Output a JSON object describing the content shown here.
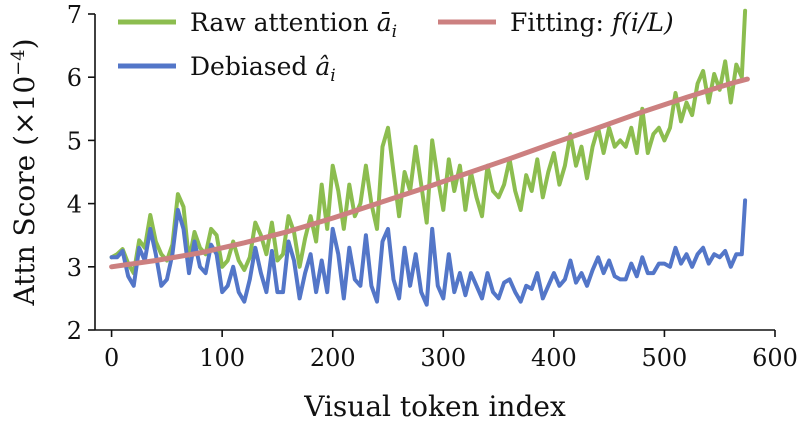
{
  "chart_data": {
    "type": "line",
    "xlabel": "Visual token index",
    "ylabel": "Attn Score (×10",
    "ylabel_exponent": "−4",
    "ylabel_close": ")",
    "xlim": [
      -15,
      600
    ],
    "ylim": [
      2,
      7
    ],
    "xticks": [
      0,
      100,
      200,
      300,
      400,
      500,
      600
    ],
    "yticks": [
      2,
      3,
      4,
      5,
      6,
      7
    ],
    "legend": [
      {
        "name": "raw",
        "label": "Raw attention ",
        "math": "ā",
        "sub": "i",
        "color": "#8cbd4f"
      },
      {
        "name": "debiased",
        "label": "Debiased ",
        "math": "â",
        "sub": "i",
        "color": "#5376c8"
      },
      {
        "name": "fitting",
        "label": "Fitting: ",
        "math": "f(i/L)",
        "sub": "",
        "color": "#cc8080"
      }
    ],
    "series": [
      {
        "name": "raw",
        "color": "#8cbd4f",
        "x": [
          0,
          5,
          10,
          15,
          20,
          25,
          30,
          35,
          40,
          45,
          50,
          55,
          60,
          65,
          70,
          75,
          80,
          85,
          90,
          95,
          100,
          105,
          110,
          115,
          120,
          125,
          130,
          135,
          140,
          145,
          150,
          155,
          160,
          165,
          170,
          175,
          180,
          185,
          190,
          195,
          200,
          205,
          210,
          215,
          220,
          225,
          230,
          235,
          240,
          245,
          250,
          255,
          260,
          265,
          270,
          275,
          280,
          285,
          290,
          295,
          300,
          305,
          310,
          315,
          320,
          325,
          330,
          335,
          340,
          345,
          350,
          355,
          360,
          365,
          370,
          375,
          380,
          385,
          390,
          395,
          400,
          405,
          410,
          415,
          420,
          425,
          430,
          435,
          440,
          445,
          450,
          455,
          460,
          465,
          470,
          475,
          480,
          485,
          490,
          495,
          500,
          505,
          510,
          515,
          520,
          525,
          530,
          535,
          540,
          545,
          550,
          555,
          560,
          565,
          570,
          573
        ],
        "values": [
          3.15,
          3.2,
          3.28,
          3.05,
          2.9,
          3.42,
          3.3,
          3.82,
          3.4,
          3.2,
          3.1,
          3.35,
          4.15,
          3.95,
          3.1,
          3.55,
          3.3,
          3.2,
          3.6,
          3.5,
          3.0,
          3.1,
          3.4,
          3.1,
          2.95,
          3.15,
          3.7,
          3.5,
          3.2,
          3.7,
          3.1,
          3.2,
          3.8,
          3.55,
          3.0,
          3.45,
          3.8,
          3.4,
          4.3,
          3.6,
          4.6,
          4.2,
          3.6,
          4.3,
          3.8,
          4.0,
          4.6,
          4.0,
          3.6,
          4.9,
          5.2,
          4.5,
          3.8,
          4.5,
          4.2,
          4.9,
          4.3,
          3.7,
          5.0,
          4.4,
          3.9,
          4.7,
          4.2,
          4.6,
          3.9,
          4.5,
          4.1,
          3.8,
          4.6,
          4.2,
          4.1,
          4.3,
          4.7,
          4.2,
          3.9,
          4.45,
          4.2,
          4.7,
          4.1,
          4.5,
          4.8,
          4.3,
          4.6,
          5.1,
          4.6,
          4.9,
          4.4,
          4.9,
          5.2,
          4.8,
          5.2,
          4.9,
          5.0,
          4.9,
          5.2,
          4.8,
          5.5,
          4.8,
          5.1,
          5.2,
          5.0,
          5.2,
          5.75,
          5.3,
          5.6,
          5.4,
          5.9,
          6.1,
          5.6,
          6.05,
          5.8,
          6.25,
          5.6,
          6.2,
          6.0,
          7.05
        ]
      },
      {
        "name": "debiased",
        "color": "#5376c8",
        "x": [
          0,
          5,
          10,
          15,
          20,
          25,
          30,
          35,
          40,
          45,
          50,
          55,
          60,
          65,
          70,
          75,
          80,
          85,
          90,
          95,
          100,
          105,
          110,
          115,
          120,
          125,
          130,
          135,
          140,
          145,
          150,
          155,
          160,
          165,
          170,
          175,
          180,
          185,
          190,
          195,
          200,
          205,
          210,
          215,
          220,
          225,
          230,
          235,
          240,
          245,
          250,
          255,
          260,
          265,
          270,
          275,
          280,
          285,
          290,
          295,
          300,
          305,
          310,
          315,
          320,
          325,
          330,
          335,
          340,
          345,
          350,
          355,
          360,
          365,
          370,
          375,
          380,
          385,
          390,
          395,
          400,
          405,
          410,
          415,
          420,
          425,
          430,
          435,
          440,
          445,
          450,
          455,
          460,
          465,
          470,
          475,
          480,
          485,
          490,
          495,
          500,
          505,
          510,
          515,
          520,
          525,
          530,
          535,
          540,
          545,
          550,
          555,
          560,
          565,
          570,
          573
        ],
        "values": [
          3.15,
          3.15,
          3.25,
          2.85,
          2.7,
          3.3,
          3.1,
          3.6,
          3.2,
          2.7,
          2.8,
          3.2,
          3.9,
          3.6,
          2.9,
          3.4,
          3.0,
          2.9,
          3.35,
          3.2,
          2.6,
          2.7,
          3.0,
          2.6,
          2.45,
          2.8,
          3.3,
          2.9,
          2.6,
          3.25,
          2.6,
          2.6,
          3.4,
          3.1,
          2.5,
          2.9,
          3.2,
          2.6,
          3.1,
          2.6,
          3.6,
          3.2,
          2.5,
          3.3,
          2.8,
          2.7,
          3.5,
          2.7,
          2.45,
          3.4,
          3.6,
          2.8,
          2.5,
          3.3,
          2.7,
          3.2,
          2.6,
          2.4,
          3.6,
          2.7,
          2.5,
          3.2,
          2.6,
          2.9,
          2.55,
          2.9,
          2.7,
          2.5,
          2.9,
          2.6,
          2.5,
          2.75,
          2.8,
          2.6,
          2.45,
          2.7,
          2.65,
          2.9,
          2.5,
          2.7,
          2.9,
          2.7,
          2.8,
          3.1,
          2.75,
          2.9,
          2.7,
          2.95,
          3.15,
          2.9,
          3.1,
          2.85,
          2.8,
          2.8,
          3.05,
          2.85,
          3.15,
          2.9,
          2.9,
          3.05,
          3.05,
          3.0,
          3.3,
          3.05,
          3.2,
          3.0,
          3.2,
          3.3,
          3.05,
          3.2,
          3.15,
          3.25,
          3.0,
          3.2,
          3.2,
          4.05
        ]
      },
      {
        "name": "fitting",
        "color": "#cc8080",
        "x": [
          0,
          40,
          80,
          120,
          160,
          200,
          240,
          280,
          320,
          360,
          400,
          440,
          480,
          520,
          560,
          575
        ],
        "values": [
          3.0,
          3.1,
          3.22,
          3.38,
          3.56,
          3.77,
          4.0,
          4.23,
          4.47,
          4.71,
          4.96,
          5.2,
          5.45,
          5.68,
          5.9,
          5.97
        ]
      }
    ]
  }
}
